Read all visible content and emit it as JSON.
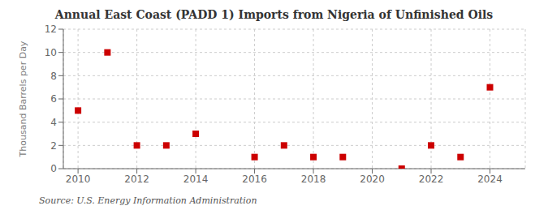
{
  "chart_data": {
    "type": "scatter",
    "title": "Annual East Coast (PADD 1) Imports from Nigeria of Unfinished Oils",
    "ylabel": "Thousand Barrels per Day",
    "source": "Source: U.S. Energy Information Administration",
    "x": [
      2010,
      2011,
      2012,
      2013,
      2014,
      2016,
      2017,
      2018,
      2019,
      2021,
      2022,
      2023,
      2024
    ],
    "values": [
      5,
      10,
      2,
      2,
      3,
      1,
      2,
      1,
      1,
      0,
      2,
      1,
      7
    ],
    "color": "#cc0000",
    "marker": "square",
    "xlim": [
      2009.5,
      2025.2
    ],
    "ylim": [
      0,
      12
    ],
    "xticks": [
      2010,
      2012,
      2014,
      2016,
      2018,
      2020,
      2022,
      2024
    ],
    "yticks": [
      0,
      2,
      4,
      6,
      8,
      10,
      12
    ],
    "grid": true
  }
}
